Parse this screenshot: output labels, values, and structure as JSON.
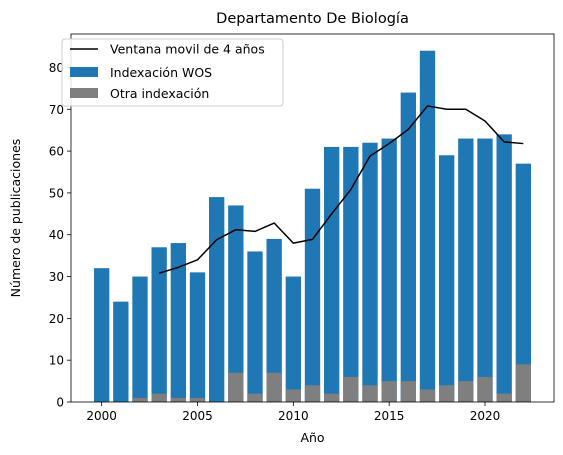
{
  "chart_data": {
    "type": "bar",
    "title": "Departamento De Biología",
    "xlabel": "Año",
    "ylabel": "Número de publicaciones",
    "xlim": [
      1998.4,
      2023.6
    ],
    "ylim": [
      0,
      88
    ],
    "xticks": [
      2000,
      2005,
      2010,
      2015,
      2020
    ],
    "yticks": [
      0,
      10,
      20,
      30,
      40,
      50,
      60,
      70,
      80
    ],
    "grid": false,
    "legend_position": "top-left",
    "x": [
      2000,
      2001,
      2002,
      2003,
      2004,
      2005,
      2006,
      2007,
      2008,
      2009,
      2010,
      2011,
      2012,
      2013,
      2014,
      2015,
      2016,
      2017,
      2018,
      2019,
      2020,
      2021,
      2022
    ],
    "series": [
      {
        "name": "Indexación WOS",
        "type": "bar",
        "color": "#1f77b4",
        "values": [
          32,
          24,
          30,
          37,
          38,
          31,
          49,
          47,
          36,
          39,
          30,
          51,
          61,
          61,
          62,
          63,
          74,
          84,
          59,
          63,
          63,
          64,
          57
        ]
      },
      {
        "name": "Otra indexación",
        "type": "bar",
        "color": "#7f7f7f",
        "values": [
          0,
          0,
          1,
          2,
          1,
          1,
          0,
          7,
          2,
          7,
          3,
          4,
          2,
          6,
          4,
          5,
          5,
          3,
          4,
          5,
          6,
          2,
          9
        ]
      },
      {
        "name": "Ventana movil de 4 años",
        "type": "line",
        "color": "#000000",
        "x": [
          2003,
          2004,
          2005,
          2006,
          2007,
          2008,
          2009,
          2010,
          2011,
          2012,
          2013,
          2014,
          2015,
          2016,
          2017,
          2018,
          2019,
          2020,
          2021,
          2022
        ],
        "values": [
          30.8,
          32.2,
          34,
          38.8,
          41.2,
          40.8,
          42.8,
          38,
          38.9,
          45,
          50.8,
          58.8,
          61.8,
          65.2,
          70.8,
          70,
          70,
          67.2,
          62.2,
          61.8
        ]
      }
    ]
  }
}
